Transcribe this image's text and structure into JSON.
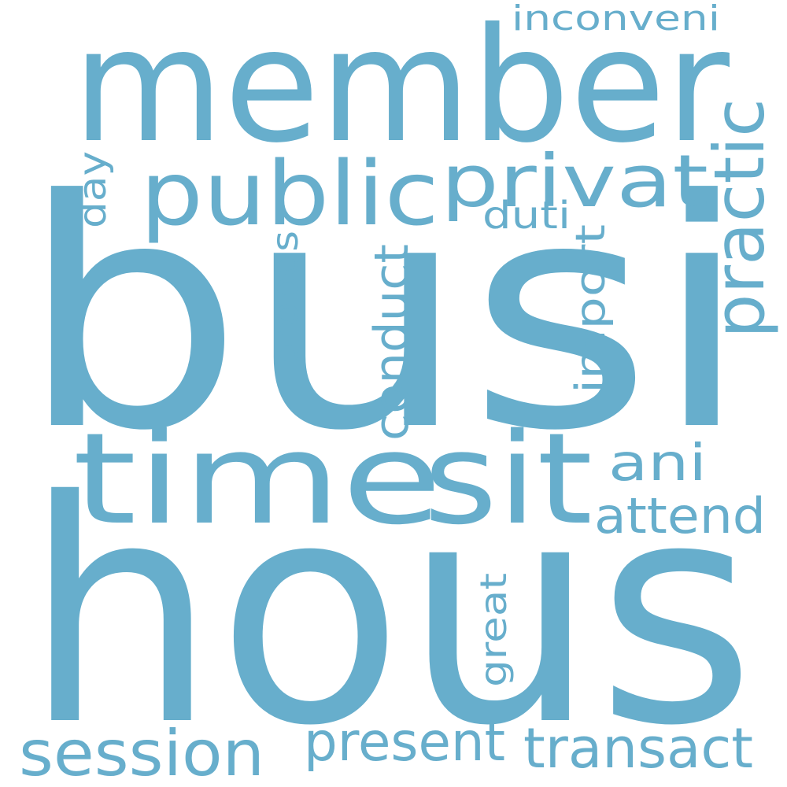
{
  "colors": {
    "background": "#ffffff",
    "word": "#67AECC"
  },
  "words": {
    "busi": "busi",
    "hous": "hous",
    "member": "member",
    "time": "time",
    "sit": "sit",
    "public": "public",
    "privat": "privat",
    "practic": "practic",
    "session": "session",
    "present": "present",
    "transact": "transact",
    "attend": "attend",
    "ani": "ani",
    "conduct": "conduct",
    "import": "import",
    "propos": "propos",
    "day": "day",
    "duti": "duti",
    "great": "great",
    "inconveni": "inconveni"
  }
}
